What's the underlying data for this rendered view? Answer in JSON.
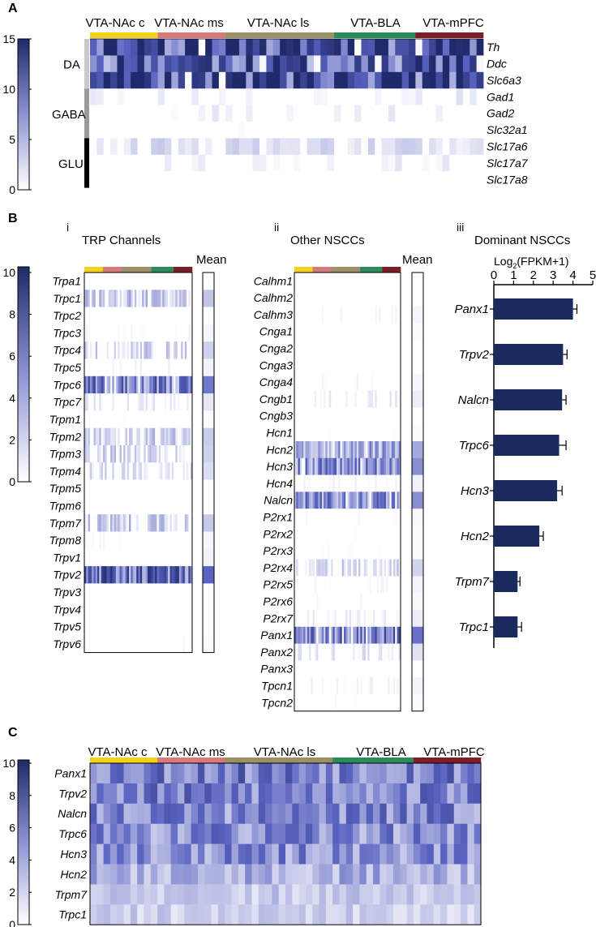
{
  "panels": {
    "a": "A",
    "b": "B",
    "c": "C",
    "bi": "i",
    "bii": "ii",
    "biii": "iii"
  },
  "colors": {
    "low": "#ffffff",
    "high": "#1f2a6b",
    "mid": "#5a63c0",
    "bar": "#1b2a5c",
    "frame": "#000000",
    "DA": "#c9c9c9",
    "GABA": "#9a9a9a",
    "GLU": "#000000"
  },
  "regions": [
    {
      "name": "VTA-NAc c",
      "color": "#f2d21b"
    },
    {
      "name": "VTA-NAc ms",
      "color": "#d77a7c"
    },
    {
      "name": "VTA-NAc ls",
      "color": "#9c9166"
    },
    {
      "name": "VTA-BLA",
      "color": "#2c8b5a"
    },
    {
      "name": "VTA-mPFC",
      "color": "#7b1e28"
    }
  ],
  "chart_data": [
    {
      "id": "A",
      "type": "heatmap",
      "title": "",
      "colorbar": {
        "min": 0,
        "max": 15,
        "ticks": [
          0,
          5,
          10,
          15
        ]
      },
      "region_counts": [
        10,
        10,
        16,
        12,
        10
      ],
      "rows": [
        "Th",
        "Ddc",
        "Slc6a3",
        "Gad1",
        "Gad2",
        "Slc32a1",
        "Slc17a6",
        "Slc17a7",
        "Slc17a8"
      ],
      "row_groups": [
        {
          "name": "DA",
          "rows": 3
        },
        {
          "name": "GABA",
          "rows": 3
        },
        {
          "name": "GLU",
          "rows": 3
        }
      ],
      "row_levels": [
        12.5,
        10.5,
        12.5,
        1.0,
        0.8,
        0.2,
        1.8,
        0.9,
        0.05
      ]
    },
    {
      "id": "B-i",
      "type": "heatmap",
      "title": "TRP Channels",
      "mean_label": "Mean",
      "colorbar": {
        "min": 0,
        "max": 10,
        "ticks": [
          0,
          2,
          4,
          6,
          8,
          10
        ]
      },
      "region_counts": [
        10,
        10,
        16,
        12,
        10
      ],
      "rows": [
        "Trpa1",
        "Trpc1",
        "Trpc2",
        "Trpc3",
        "Trpc4",
        "Trpc5",
        "Trpc6",
        "Trpc7",
        "Trpm1",
        "Trpm2",
        "Trpm3",
        "Trpm4",
        "Trpm5",
        "Trpm6",
        "Trpm7",
        "Trpm8",
        "Trpv1",
        "Trpv2",
        "Trpv3",
        "Trpv4",
        "Trpv5",
        "Trpv6"
      ],
      "row_levels": [
        0.0,
        2.0,
        0.0,
        0.3,
        1.6,
        0.4,
        4.8,
        0.8,
        0.1,
        1.8,
        1.6,
        1.2,
        0.0,
        0.0,
        1.9,
        0.3,
        0.4,
        5.5,
        0.05,
        0.0,
        0.0,
        0.15
      ]
    },
    {
      "id": "B-ii",
      "type": "heatmap",
      "title": "Other NSCCs",
      "mean_label": "Mean",
      "region_counts": [
        10,
        10,
        16,
        12,
        10
      ],
      "rows": [
        "Calhm1",
        "Calhm2",
        "Calhm3",
        "Cnga1",
        "Cnga2",
        "Cnga3",
        "Cnga4",
        "Cngb1",
        "Cngb3",
        "Hcn1",
        "Hcn2",
        "Hcn3",
        "Hcn4",
        "Nalcn",
        "P2rx1",
        "P2rx2",
        "P2rx3",
        "P2rx4",
        "P2rx5",
        "P2rx6",
        "P2rx7",
        "Panx1",
        "Panx2",
        "Panx3",
        "Tpcn1",
        "Tpcn2"
      ],
      "row_levels": [
        0.0,
        0.05,
        0.3,
        0.1,
        0.0,
        0.0,
        0.3,
        0.6,
        0.0,
        0.1,
        3.0,
        4.0,
        0.5,
        4.0,
        0.2,
        0.1,
        0.1,
        1.5,
        0.4,
        0.2,
        0.6,
        5.0,
        1.0,
        0.0,
        0.4,
        0.1
      ]
    },
    {
      "id": "B-iii",
      "type": "bar",
      "orientation": "horizontal",
      "title": "Dominant NSCCs",
      "xlabel_main": "Log",
      "xlabel_sub": "2",
      "xlabel_rest": "(FPKM+1)",
      "categories": [
        "Panx1",
        "Trpv2",
        "Nalcn",
        "Trpc6",
        "Hcn3",
        "Hcn2",
        "Trpm7",
        "Trpc1"
      ],
      "values": [
        4.0,
        3.5,
        3.45,
        3.3,
        3.2,
        2.3,
        1.2,
        1.2
      ],
      "errors": [
        0.2,
        0.2,
        0.2,
        0.35,
        0.25,
        0.2,
        0.12,
        0.2
      ],
      "xlim": [
        0,
        5
      ],
      "xticks": [
        0,
        1,
        2,
        3,
        4,
        5
      ]
    },
    {
      "id": "C",
      "type": "heatmap",
      "title": "",
      "colorbar": {
        "min": 0,
        "max": 10,
        "ticks": [
          0,
          2,
          4,
          6,
          8,
          10
        ]
      },
      "region_counts": [
        10,
        10,
        16,
        12,
        10
      ],
      "rows": [
        "Panx1",
        "Trpv2",
        "Nalcn",
        "Trpc6",
        "Hcn3",
        "Hcn2",
        "Trpm7",
        "Trpc1"
      ],
      "row_levels": [
        5.0,
        4.5,
        4.3,
        4.0,
        3.9,
        2.8,
        1.8,
        1.6
      ]
    }
  ]
}
